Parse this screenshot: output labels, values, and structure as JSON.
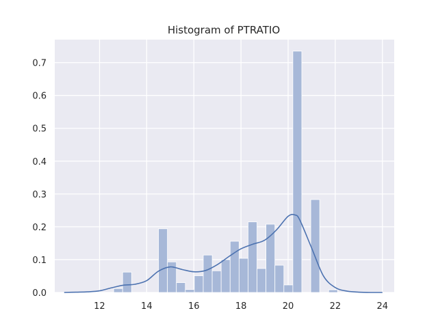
{
  "chart_data": {
    "type": "bar",
    "title": "Histogram of PTRATIO",
    "xlabel": "",
    "ylabel": "",
    "xlim": [
      10.1,
      24.5
    ],
    "ylim": [
      0.0,
      0.77
    ],
    "xticks": [
      12,
      14,
      16,
      18,
      20,
      22,
      24
    ],
    "yticks": [
      0.0,
      0.1,
      0.2,
      0.3,
      0.4,
      0.5,
      0.6,
      0.7
    ],
    "grid": true,
    "background_color": "#eaeaf2",
    "bar_color": "#a7b8d8",
    "line_color": "#4c72b0",
    "bins": [
      {
        "x0": 12.6,
        "x1": 12.98,
        "value": 0.012
      },
      {
        "x0": 12.98,
        "x1": 13.36,
        "value": 0.062
      },
      {
        "x0": 14.5,
        "x1": 14.88,
        "value": 0.194
      },
      {
        "x0": 14.88,
        "x1": 15.26,
        "value": 0.093
      },
      {
        "x0": 15.26,
        "x1": 15.64,
        "value": 0.03
      },
      {
        "x0": 15.64,
        "x1": 16.02,
        "value": 0.009
      },
      {
        "x0": 16.02,
        "x1": 16.4,
        "value": 0.051
      },
      {
        "x0": 16.4,
        "x1": 16.78,
        "value": 0.114
      },
      {
        "x0": 16.78,
        "x1": 17.16,
        "value": 0.066
      },
      {
        "x0": 17.16,
        "x1": 17.54,
        "value": 0.1
      },
      {
        "x0": 17.54,
        "x1": 17.92,
        "value": 0.156
      },
      {
        "x0": 17.92,
        "x1": 18.3,
        "value": 0.104
      },
      {
        "x0": 18.3,
        "x1": 18.68,
        "value": 0.215
      },
      {
        "x0": 18.68,
        "x1": 19.06,
        "value": 0.073
      },
      {
        "x0": 19.06,
        "x1": 19.44,
        "value": 0.208
      },
      {
        "x0": 19.44,
        "x1": 19.82,
        "value": 0.083
      },
      {
        "x0": 19.82,
        "x1": 20.2,
        "value": 0.023
      },
      {
        "x0": 20.2,
        "x1": 20.58,
        "value": 0.735
      },
      {
        "x0": 20.96,
        "x1": 21.34,
        "value": 0.283
      },
      {
        "x0": 21.72,
        "x1": 22.1,
        "value": 0.008
      }
    ],
    "kde": {
      "x": [
        10.5,
        11.0,
        11.5,
        12.0,
        12.5,
        13.0,
        13.5,
        14.0,
        14.5,
        15.0,
        15.5,
        16.0,
        16.5,
        17.0,
        17.5,
        18.0,
        18.5,
        19.0,
        19.5,
        20.0,
        20.3,
        20.5,
        21.0,
        21.5,
        22.0,
        22.5,
        23.0,
        23.5,
        24.0
      ],
      "y": [
        0.0,
        0.001,
        0.002,
        0.005,
        0.014,
        0.022,
        0.025,
        0.036,
        0.065,
        0.078,
        0.07,
        0.063,
        0.067,
        0.085,
        0.11,
        0.133,
        0.147,
        0.159,
        0.19,
        0.232,
        0.236,
        0.22,
        0.135,
        0.05,
        0.015,
        0.004,
        0.001,
        0.0,
        0.0
      ]
    }
  }
}
